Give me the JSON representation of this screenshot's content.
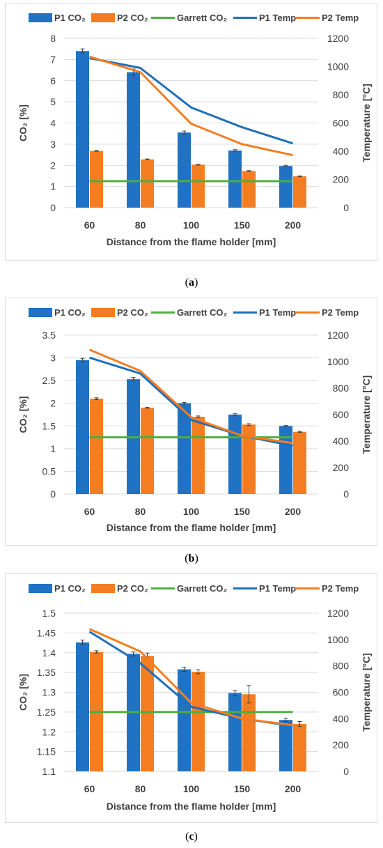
{
  "colors": {
    "p1_co2": "#1f72c4",
    "p2_co2": "#f47d22",
    "garrett": "#4caf3e",
    "p1_temp": "#1f6fb8",
    "p2_temp": "#f47d22",
    "grid": "#d9d9d9",
    "axis_text": "#404040"
  },
  "panels": [
    {
      "caption_letter": "a",
      "legend": [
        "P1 CO₂",
        "P2 CO₂",
        "Garrett CO₂",
        "P1 Temp",
        "P2 Temp"
      ],
      "chart_data": {
        "type": "bar",
        "categories": [
          "60",
          "80",
          "100",
          "150",
          "200"
        ],
        "xlabel": "Distance from the flame holder [mm]",
        "ylabel": "CO₂ [%]",
        "y2label": "Temperature [°C]",
        "ylim": [
          0,
          8
        ],
        "yticks": [
          "0",
          "1",
          "2",
          "3",
          "4",
          "5",
          "6",
          "7",
          "8"
        ],
        "y2lim": [
          0,
          1200
        ],
        "y2ticks": [
          "0",
          "200",
          "400",
          "600",
          "800",
          "1000",
          "1200"
        ],
        "grid": true,
        "legend_position": "top",
        "series": [
          {
            "name": "P1 CO₂",
            "kind": "bar",
            "values": [
              7.4,
              6.4,
              3.55,
              2.7,
              1.97
            ],
            "errors": [
              0.1,
              0.15,
              0.07,
              0.04,
              0.03
            ]
          },
          {
            "name": "P2 CO₂",
            "kind": "bar",
            "values": [
              2.68,
              2.28,
              2.03,
              1.73,
              1.48
            ],
            "errors": [
              0.02,
              0.02,
              0.02,
              0.02,
              0.02
            ]
          },
          {
            "name": "Garrett CO₂",
            "kind": "line",
            "axis": "left",
            "values": [
              1.25,
              1.25,
              1.25,
              1.25,
              1.25
            ]
          },
          {
            "name": "P1 Temp",
            "kind": "line",
            "axis": "right",
            "values": [
              1060,
              990,
              710,
              570,
              455
            ]
          },
          {
            "name": "P2 Temp",
            "kind": "line",
            "axis": "right",
            "values": [
              1070,
              960,
              595,
              450,
              372
            ]
          }
        ]
      }
    },
    {
      "caption_letter": "b",
      "legend": [
        "P1 CO₂",
        "P2 CO₂",
        "Garrett CO₂",
        "P1 Temp",
        "P2 Temp"
      ],
      "chart_data": {
        "type": "bar",
        "categories": [
          "60",
          "80",
          "100",
          "150",
          "200"
        ],
        "xlabel": "Distance from the flame holder [mm]",
        "ylabel": "CO₂ [%]",
        "y2label": "Temperature [°C]",
        "ylim": [
          0,
          3.5
        ],
        "yticks": [
          "0",
          "0.5",
          "1",
          "1.5",
          "2",
          "2.5",
          "3",
          "3.5"
        ],
        "y2lim": [
          0,
          1200
        ],
        "y2ticks": [
          "0",
          "200",
          "400",
          "600",
          "800",
          "1000",
          "1200"
        ],
        "grid": true,
        "legend_position": "top",
        "series": [
          {
            "name": "P1 CO₂",
            "kind": "bar",
            "values": [
              2.95,
              2.53,
              2.0,
              1.75,
              1.5
            ],
            "errors": [
              0.04,
              0.04,
              0.02,
              0.02,
              0.01
            ]
          },
          {
            "name": "P2 CO₂",
            "kind": "bar",
            "values": [
              2.1,
              1.9,
              1.7,
              1.53,
              1.37
            ],
            "errors": [
              0.02,
              0.01,
              0.02,
              0.02,
              0.01
            ]
          },
          {
            "name": "Garrett CO₂",
            "kind": "line",
            "axis": "left",
            "values": [
              1.25,
              1.25,
              1.25,
              1.25,
              1.25
            ]
          },
          {
            "name": "P1 Temp",
            "kind": "line",
            "axis": "right",
            "values": [
              1030,
              910,
              560,
              440,
              365
            ]
          },
          {
            "name": "P2 Temp",
            "kind": "line",
            "axis": "right",
            "values": [
              1090,
              930,
              580,
              440,
              385
            ]
          }
        ]
      }
    },
    {
      "caption_letter": "c",
      "legend": [
        "P1 CO₂",
        "P2 CO₂",
        "Garrett CO₂",
        "P1 Temp",
        "P2 Temp"
      ],
      "chart_data": {
        "type": "bar",
        "categories": [
          "60",
          "80",
          "100",
          "150",
          "200"
        ],
        "xlabel": "Distance from the flame holder [mm]",
        "ylabel": "CO₂ [%]",
        "y2label": "Temperature [°C]",
        "ylim": [
          1.1,
          1.5
        ],
        "yticks": [
          "1.1",
          "1.15",
          "1.2",
          "1.25",
          "1.3",
          "1.35",
          "1.4",
          "1.45",
          "1.5"
        ],
        "y2lim": [
          0,
          1200
        ],
        "y2ticks": [
          "0",
          "200",
          "400",
          "600",
          "800",
          "1000",
          "1200"
        ],
        "grid": true,
        "legend_position": "top",
        "series": [
          {
            "name": "P1 CO₂",
            "kind": "bar",
            "values": [
              1.426,
              1.397,
              1.358,
              1.298,
              1.23
            ],
            "errors": [
              0.006,
              0.005,
              0.005,
              0.007,
              0.004
            ]
          },
          {
            "name": "P2 CO₂",
            "kind": "bar",
            "values": [
              1.402,
              1.392,
              1.352,
              1.295,
              1.22
            ],
            "errors": [
              0.003,
              0.007,
              0.005,
              0.022,
              0.006
            ]
          },
          {
            "name": "Garrett CO₂",
            "kind": "line",
            "axis": "left",
            "values": [
              1.25,
              1.25,
              1.25,
              1.25,
              1.25
            ]
          },
          {
            "name": "P1 Temp",
            "kind": "line",
            "axis": "right",
            "values": [
              1060,
              820,
              490,
              400,
              345
            ]
          },
          {
            "name": "P2 Temp",
            "kind": "line",
            "axis": "right",
            "values": [
              1080,
              910,
              520,
              400,
              350
            ]
          }
        ]
      }
    }
  ]
}
